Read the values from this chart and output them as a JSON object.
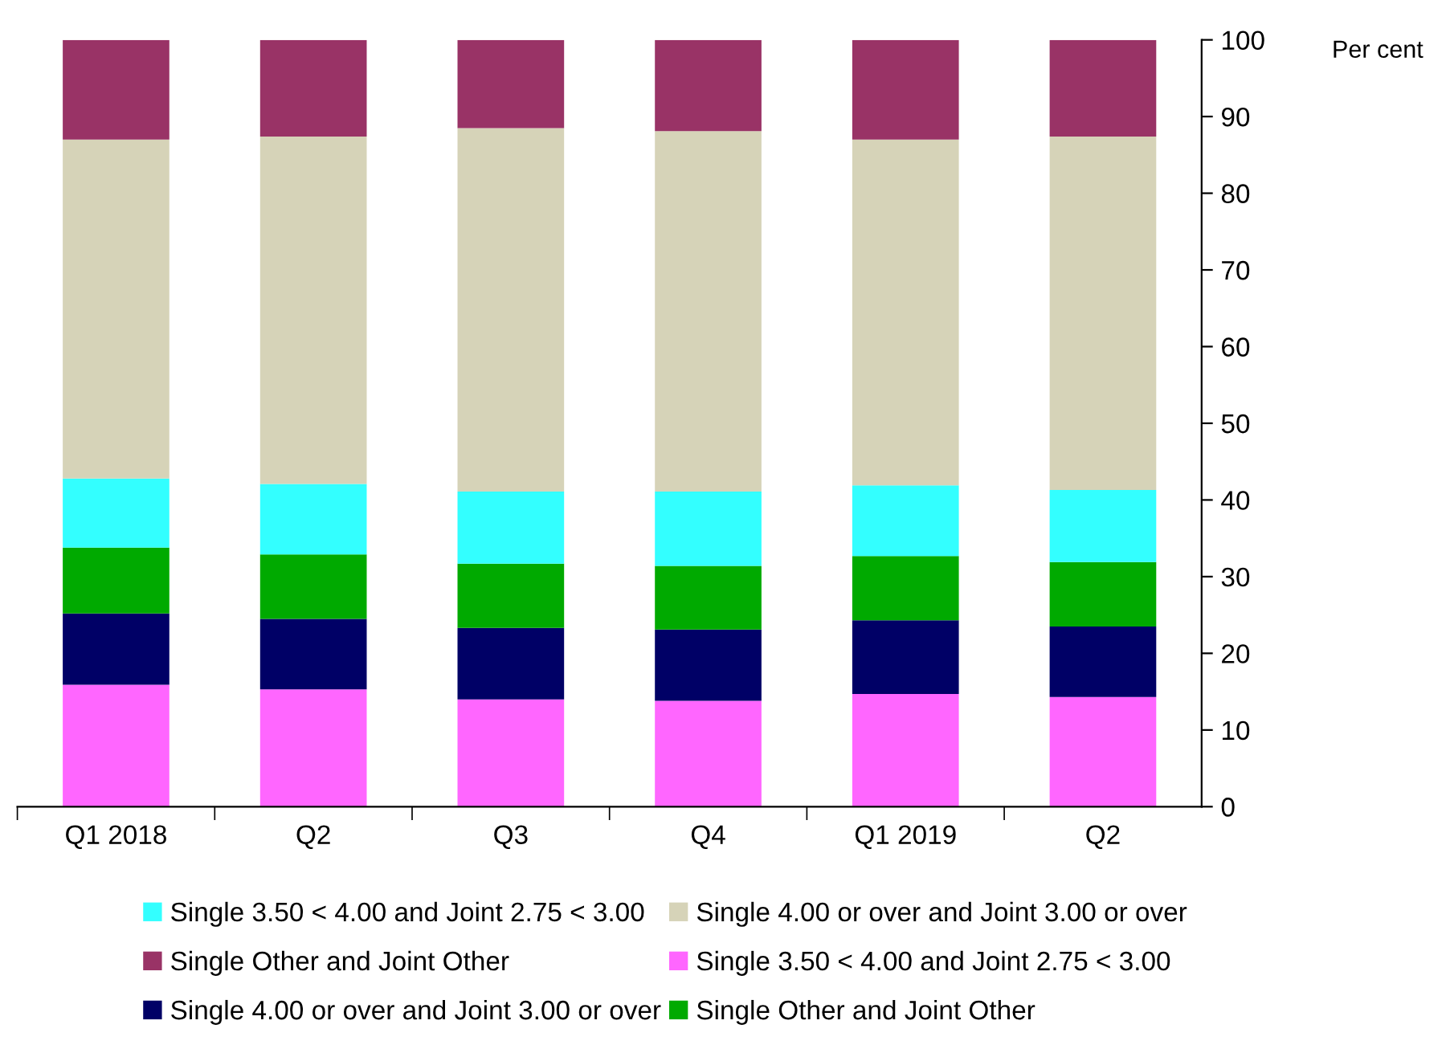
{
  "chart_data": {
    "type": "bar",
    "stacked": true,
    "ylabel": "Per cent",
    "categories": [
      "Q1 2018",
      "Q2",
      "Q3",
      "Q4",
      "Q1 2019",
      "Q2"
    ],
    "series": [
      {
        "name": "Single 3.50 < 4.00 and Joint 2.75 < 3.00",
        "color": "#ff66ff",
        "values": [
          15.9,
          15.3,
          14.0,
          13.8,
          14.7,
          14.3
        ]
      },
      {
        "name": "Single 4.00 or over and Joint 3.00 or over",
        "color": "#000066",
        "values": [
          9.3,
          9.2,
          9.3,
          9.3,
          9.6,
          9.2
        ]
      },
      {
        "name": "Single Other and Joint Other",
        "color": "#00aa00",
        "values": [
          8.6,
          8.4,
          8.4,
          8.3,
          8.4,
          8.4
        ]
      },
      {
        "name": "Single 3.50 < 4.00 and Joint 2.75 < 3.00",
        "color": "#33ffff",
        "values": [
          9.0,
          9.2,
          9.4,
          9.7,
          9.2,
          9.4
        ]
      },
      {
        "name": "Single 4.00 or over and Joint 3.00 or over",
        "color": "#d6d3b8",
        "values": [
          44.2,
          45.3,
          47.4,
          47.0,
          45.1,
          46.1
        ]
      },
      {
        "name": "Single Other and Joint Other",
        "color": "#993366",
        "values": [
          13.0,
          12.6,
          11.5,
          11.9,
          13.0,
          12.6
        ]
      }
    ],
    "ylim": [
      0,
      100
    ],
    "yticks": [
      0,
      10,
      20,
      30,
      40,
      50,
      60,
      70,
      80,
      90,
      100
    ],
    "grid": false,
    "legend": "bottom"
  }
}
